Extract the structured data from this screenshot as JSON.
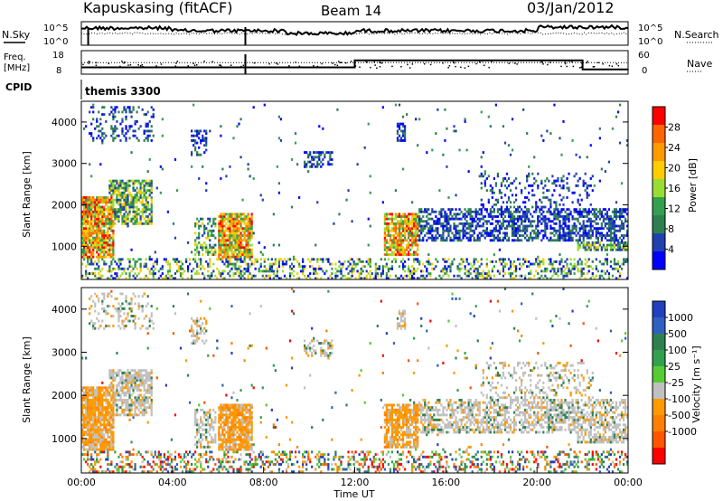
{
  "header": {
    "station": "Kapuskasing (fitACF)",
    "beam": "Beam 14",
    "date": "03/Jan/2012"
  },
  "labels": {
    "nsky": "N.Sky",
    "nsearch": "N.Search",
    "freq_line1": "Freq.",
    "freq_line2": "[MHz]",
    "nave": "Nave",
    "cpid": "CPID",
    "mode": "themis 3300",
    "x_axis": "Time UT",
    "y_axis": "Slant Range [km]",
    "power_cb": "Power [dB]",
    "velocity_cb": "Velocity [m s⁻¹]"
  },
  "chart_data": [
    {
      "type": "line",
      "name": "noise-panel",
      "yticks_left": [
        "10^5",
        "10^0"
      ],
      "yticks_right": [
        "10^5",
        "10^0"
      ],
      "series": [
        {
          "name": "N.Sky",
          "style": "solid"
        },
        {
          "name": "N.Search",
          "style": "dotted"
        }
      ]
    },
    {
      "type": "line",
      "name": "frequency-panel",
      "yticks_left": [
        18,
        8
      ],
      "yticks_right": [
        60,
        0
      ],
      "series": [
        {
          "name": "Freq.",
          "style": "solid",
          "x": [
            0,
            12,
            12,
            22,
            22,
            24
          ],
          "values": [
            10.5,
            10.5,
            14,
            14,
            9.5,
            9.5
          ]
        },
        {
          "name": "Nave",
          "style": "dotted",
          "x": [
            0,
            24
          ],
          "values": [
            32,
            32
          ]
        }
      ]
    },
    {
      "type": "heatmap",
      "name": "power-panel",
      "xlabel": "",
      "ylabel": "Slant Range [km]",
      "xlim": [
        0,
        24
      ],
      "ylim": [
        200,
        4500
      ],
      "yticks": [
        1000,
        2000,
        3000,
        4000
      ],
      "colorbar": {
        "label": "Power [dB]",
        "ticks": [
          4,
          8,
          12,
          16,
          20,
          24,
          28
        ],
        "range": [
          0,
          32
        ],
        "colors": [
          "#0000ff",
          "#2040b0",
          "#2f8050",
          "#33a050",
          "#99dd33",
          "#ffcc00",
          "#ff9900",
          "#ff6600",
          "#ff0000"
        ]
      }
    },
    {
      "type": "heatmap",
      "name": "velocity-panel",
      "xlabel": "Time UT",
      "ylabel": "Slant Range [km]",
      "xlim": [
        0,
        24
      ],
      "ylim": [
        200,
        4500
      ],
      "yticks": [
        1000,
        2000,
        3000,
        4000
      ],
      "xticks": [
        "00:00",
        "04:00",
        "08:00",
        "12:00",
        "16:00",
        "20:00",
        "00:00"
      ],
      "colorbar": {
        "label": "Velocity [m s⁻¹]",
        "ticks": [
          "1000",
          "500",
          "100",
          "25",
          "-25",
          "-100",
          "-500",
          "-1000"
        ],
        "colors": [
          "#2040c0",
          "#3060c0",
          "#2f8050",
          "#33a050",
          "#55cc33",
          "#c0c0c0",
          "#ff9900",
          "#ff8000",
          "#ff5500",
          "#ff0000"
        ]
      }
    }
  ]
}
